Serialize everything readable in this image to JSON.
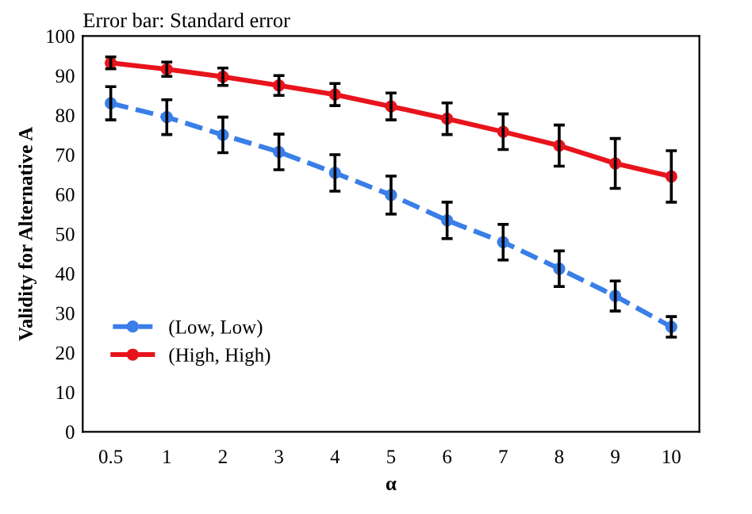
{
  "chart_data": {
    "type": "line",
    "title": "Error bar: Standard error",
    "xlabel": "α",
    "ylabel": "Validity for Alternative A",
    "categories": [
      "0.5",
      "1",
      "2",
      "3",
      "4",
      "5",
      "6",
      "7",
      "8",
      "9",
      "10"
    ],
    "series": [
      {
        "name": "(Low, Low)",
        "color": "#3a7ee8",
        "line_style": "dashed",
        "values": [
          83,
          79.5,
          75,
          70.7,
          65.4,
          59.8,
          53.4,
          47.9,
          41.2,
          34.3,
          26.5
        ],
        "errors": [
          4.2,
          4.4,
          4.5,
          4.5,
          4.6,
          4.8,
          4.6,
          4.5,
          4.5,
          3.8,
          2.6
        ]
      },
      {
        "name": "(High, High)",
        "color": "#e8141c",
        "line_style": "solid",
        "values": [
          93.2,
          91.6,
          89.7,
          87.5,
          85.2,
          82.2,
          79.1,
          75.8,
          72.3,
          67.8,
          64.5
        ],
        "errors": [
          1.5,
          1.8,
          2.2,
          2.5,
          2.8,
          3.4,
          4,
          4.5,
          5.2,
          6.3,
          6.5
        ]
      }
    ],
    "marker": "circle",
    "ylim": [
      0,
      100
    ],
    "yticks": [
      0,
      10,
      20,
      30,
      40,
      50,
      60,
      70,
      80,
      90,
      100
    ],
    "grid": false,
    "legend": "center left"
  }
}
